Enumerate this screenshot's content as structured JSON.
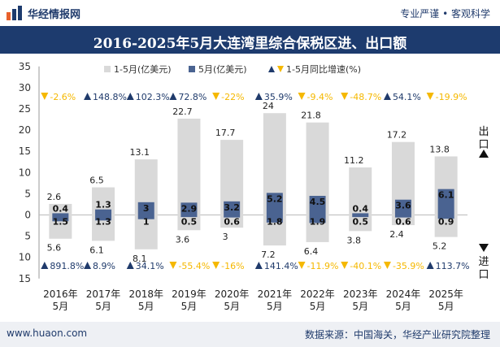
{
  "header": {
    "brand": "华经情报网",
    "slogan": "专业严谨 • 客观科学"
  },
  "title": "2016-2025年5月大连湾里综合保税区进、出口额",
  "footer": {
    "website": "www.huaon.com",
    "source": "数据来源：中国海关，华经产业研究院整理"
  },
  "colors": {
    "cumulative_bar": "#d9d9d9",
    "monthly_bar": "#4a6391",
    "up_marker": "#1f3a6b",
    "down_marker": "#f5b800",
    "header_bg": "#1d3b6e"
  },
  "chart_data": {
    "type": "bar",
    "categories": [
      "2016年\n5月",
      "2017年\n5月",
      "2018年\n5月",
      "2019年\n5月",
      "2020年\n5月",
      "2021年\n5月",
      "2022年\n5月",
      "2023年\n5月",
      "2024年\n5月",
      "2025年\n5月"
    ],
    "legend": [
      "1-5月(亿美元)",
      "5月(亿美元)",
      "1-5月同比增速(%)"
    ],
    "y_ticks_top": [
      "35",
      "30",
      "25",
      "20",
      "15",
      "10",
      "5",
      "0"
    ],
    "y_ticks_bottom": [
      "5",
      "10",
      "15"
    ],
    "ylim": [
      -15,
      35
    ],
    "side_labels": {
      "export": "出口",
      "import": "进口"
    },
    "export": {
      "cumulative": [
        2.6,
        6.5,
        13.1,
        22.7,
        17.7,
        24,
        21.8,
        11.2,
        17.2,
        13.8
      ],
      "monthly": [
        0.4,
        1.3,
        3,
        2.9,
        3.2,
        5.2,
        4.5,
        0.4,
        3.6,
        6.1
      ],
      "growth": [
        "-2.6%",
        "148.8%",
        "102.3%",
        "72.8%",
        "-22%",
        "35.9%",
        "-9.4%",
        "-48.7%",
        "54.1%",
        "-19.9%"
      ]
    },
    "import": {
      "cumulative": [
        5.6,
        6.1,
        8.1,
        3.6,
        3,
        7.2,
        6.4,
        3.8,
        2.4,
        5.2
      ],
      "monthly": [
        1.5,
        1.3,
        1,
        0.5,
        0.6,
        1.8,
        1.9,
        0.5,
        0.6,
        0.9
      ],
      "growth": [
        "891.8%",
        "8.9%",
        "34.1%",
        "-55.4%",
        "-16%",
        "141.4%",
        "-11.9%",
        "-40.1%",
        "-35.9%",
        "113.7%"
      ]
    }
  }
}
